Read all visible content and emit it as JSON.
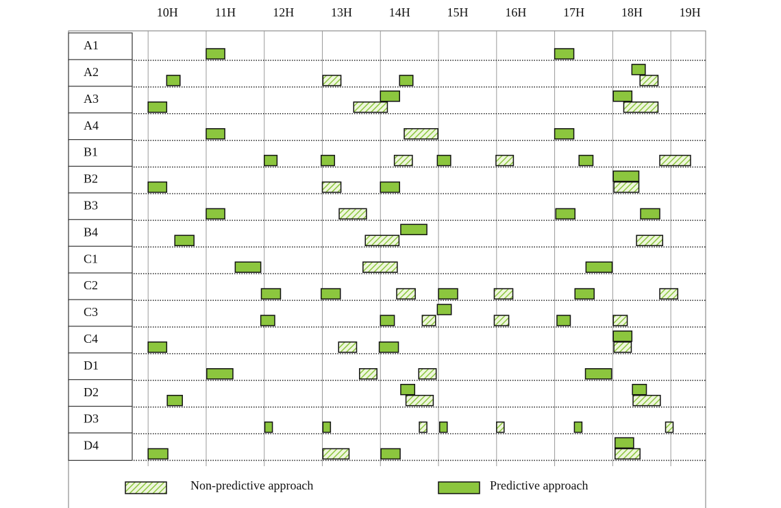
{
  "chart_data": {
    "type": "gantt",
    "categories": [
      "A1",
      "A2",
      "A3",
      "A4",
      "B1",
      "B2",
      "B3",
      "B4",
      "C1",
      "C2",
      "C3",
      "C4",
      "D1",
      "D2",
      "D3",
      "D4"
    ],
    "xlim": [
      9.75,
      19.6
    ],
    "xticks": [
      {
        "value": 10,
        "label": "10H"
      },
      {
        "value": 11,
        "label": "11H"
      },
      {
        "value": 12,
        "label": "12H"
      },
      {
        "value": 13,
        "label": "13H"
      },
      {
        "value": 14,
        "label": "14H"
      },
      {
        "value": 15,
        "label": "15H"
      },
      {
        "value": 16,
        "label": "16H"
      },
      {
        "value": 17,
        "label": "17H"
      },
      {
        "value": 18,
        "label": "18H"
      },
      {
        "value": 19,
        "label": "19H"
      }
    ],
    "series": [
      {
        "name": "Non-predictive approach",
        "color": "#8cc63e",
        "pattern": "hatch",
        "tasks": [
          {
            "row": "A2",
            "start": 13.01,
            "end": 13.32
          },
          {
            "row": "A2",
            "start": 18.47,
            "end": 18.78
          },
          {
            "row": "A3",
            "start": 13.54,
            "end": 14.12
          },
          {
            "row": "A3",
            "start": 18.19,
            "end": 18.78
          },
          {
            "row": "A4",
            "start": 14.41,
            "end": 14.99
          },
          {
            "row": "B1",
            "start": 14.24,
            "end": 14.55
          },
          {
            "row": "B1",
            "start": 15.99,
            "end": 16.29
          },
          {
            "row": "B1",
            "start": 18.81,
            "end": 19.34
          },
          {
            "row": "B2",
            "start": 13.0,
            "end": 13.32
          },
          {
            "row": "B2",
            "start": 18.02,
            "end": 18.45
          },
          {
            "row": "B3",
            "start": 13.29,
            "end": 13.76
          },
          {
            "row": "B4",
            "start": 13.74,
            "end": 14.32
          },
          {
            "row": "B4",
            "start": 18.41,
            "end": 18.86
          },
          {
            "row": "C1",
            "start": 13.7,
            "end": 14.29
          },
          {
            "row": "C2",
            "start": 14.28,
            "end": 14.6
          },
          {
            "row": "C2",
            "start": 15.96,
            "end": 16.28
          },
          {
            "row": "C2",
            "start": 18.81,
            "end": 19.12
          },
          {
            "row": "C3",
            "start": 14.72,
            "end": 14.95
          },
          {
            "row": "C3",
            "start": 15.96,
            "end": 16.21
          },
          {
            "row": "C3",
            "start": 18.01,
            "end": 18.25
          },
          {
            "row": "C4",
            "start": 13.28,
            "end": 13.59
          },
          {
            "row": "C4",
            "start": 18.02,
            "end": 18.32
          },
          {
            "row": "D1",
            "start": 13.64,
            "end": 13.94
          },
          {
            "row": "D1",
            "start": 14.66,
            "end": 14.96
          },
          {
            "row": "D2",
            "start": 14.44,
            "end": 14.91
          },
          {
            "row": "D2",
            "start": 18.35,
            "end": 18.82
          },
          {
            "row": "D3",
            "start": 14.67,
            "end": 14.8
          },
          {
            "row": "D3",
            "start": 16.0,
            "end": 16.13
          },
          {
            "row": "D3",
            "start": 18.91,
            "end": 19.04
          },
          {
            "row": "D4",
            "start": 13.01,
            "end": 13.46
          },
          {
            "row": "D4",
            "start": 18.04,
            "end": 18.47
          }
        ]
      },
      {
        "name": "Predictive approach",
        "color": "#8cc63e",
        "pattern": "solid",
        "tasks": [
          {
            "row": "A1",
            "start": 11.0,
            "end": 11.32
          },
          {
            "row": "A1",
            "start": 17.0,
            "end": 17.33
          },
          {
            "row": "A2",
            "start": 10.32,
            "end": 10.55
          },
          {
            "row": "A2",
            "start": 14.33,
            "end": 14.56
          },
          {
            "row": "A2",
            "start": 18.33,
            "end": 18.56
          },
          {
            "row": "A3",
            "start": 10.0,
            "end": 10.32
          },
          {
            "row": "A3",
            "start": 14.0,
            "end": 14.33
          },
          {
            "row": "A3",
            "start": 18.01,
            "end": 18.33
          },
          {
            "row": "A4",
            "start": 11.0,
            "end": 11.32
          },
          {
            "row": "A4",
            "start": 17.0,
            "end": 17.33
          },
          {
            "row": "B1",
            "start": 12.0,
            "end": 12.22
          },
          {
            "row": "B1",
            "start": 12.98,
            "end": 13.21
          },
          {
            "row": "B1",
            "start": 14.98,
            "end": 15.21
          },
          {
            "row": "B1",
            "start": 17.42,
            "end": 17.66
          },
          {
            "row": "B2",
            "start": 10.0,
            "end": 10.32
          },
          {
            "row": "B2",
            "start": 14.0,
            "end": 14.33
          },
          {
            "row": "B2",
            "start": 18.01,
            "end": 18.45
          },
          {
            "row": "B3",
            "start": 11.0,
            "end": 11.32
          },
          {
            "row": "B3",
            "start": 17.02,
            "end": 17.35
          },
          {
            "row": "B3",
            "start": 18.48,
            "end": 18.81
          },
          {
            "row": "B4",
            "start": 10.46,
            "end": 10.79
          },
          {
            "row": "B4",
            "start": 14.35,
            "end": 14.8
          },
          {
            "row": "C1",
            "start": 11.5,
            "end": 11.94
          },
          {
            "row": "C1",
            "start": 17.54,
            "end": 17.99
          },
          {
            "row": "C2",
            "start": 11.95,
            "end": 12.28
          },
          {
            "row": "C2",
            "start": 12.98,
            "end": 13.31
          },
          {
            "row": "C2",
            "start": 15.0,
            "end": 15.33
          },
          {
            "row": "C2",
            "start": 17.35,
            "end": 17.68
          },
          {
            "row": "C3",
            "start": 11.94,
            "end": 12.18
          },
          {
            "row": "C3",
            "start": 14.0,
            "end": 14.24
          },
          {
            "row": "C3",
            "start": 14.98,
            "end": 15.22
          },
          {
            "row": "C3",
            "start": 17.04,
            "end": 17.27
          },
          {
            "row": "C4",
            "start": 10.0,
            "end": 10.32
          },
          {
            "row": "C4",
            "start": 13.98,
            "end": 14.31
          },
          {
            "row": "C4",
            "start": 18.01,
            "end": 18.33
          },
          {
            "row": "D1",
            "start": 11.01,
            "end": 11.46
          },
          {
            "row": "D1",
            "start": 17.53,
            "end": 17.98
          },
          {
            "row": "D2",
            "start": 10.33,
            "end": 10.59
          },
          {
            "row": "D2",
            "start": 14.35,
            "end": 14.59
          },
          {
            "row": "D2",
            "start": 18.34,
            "end": 18.58
          },
          {
            "row": "D3",
            "start": 12.01,
            "end": 12.14
          },
          {
            "row": "D3",
            "start": 13.01,
            "end": 13.14
          },
          {
            "row": "D3",
            "start": 15.02,
            "end": 15.15
          },
          {
            "row": "D3",
            "start": 17.34,
            "end": 17.47
          },
          {
            "row": "D4",
            "start": 10.0,
            "end": 10.34
          },
          {
            "row": "D4",
            "start": 14.01,
            "end": 14.34
          },
          {
            "row": "D4",
            "start": 18.04,
            "end": 18.36
          }
        ]
      }
    ]
  }
}
